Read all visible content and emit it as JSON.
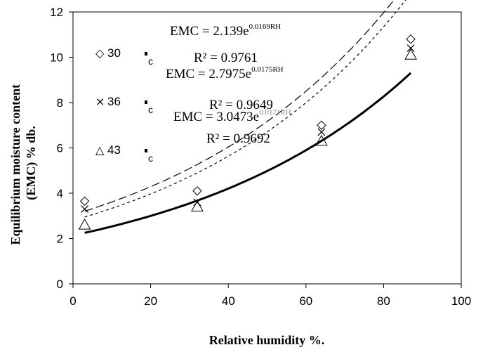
{
  "chart_data": {
    "type": "scatter",
    "xlabel": "Relative humidity %.",
    "ylabel": "Equilibrium moisture content (EMC) % db.",
    "xlim": [
      0,
      100
    ],
    "ylim": [
      0,
      12
    ],
    "xticks": [
      "0",
      "20",
      "40",
      "60",
      "80",
      "100"
    ],
    "yticks": [
      "0",
      "2",
      "4",
      "6",
      "8",
      "10",
      "12"
    ],
    "series": [
      {
        "name": "30",
        "marker": "diamond",
        "points": [
          [
            3,
            3.65
          ],
          [
            32,
            4.1
          ],
          [
            64,
            7.0
          ],
          [
            87,
            10.8
          ]
        ],
        "fit_a": 2.7975,
        "fit_b": 0.0175,
        "line": "short-dash",
        "equation": "EMC = 2.7975e",
        "exponent": "0.0175RH",
        "r2": "R² = 0.9649"
      },
      {
        "name": "36",
        "marker": "cross",
        "points": [
          [
            3,
            3.3
          ],
          [
            32,
            3.6
          ],
          [
            64,
            6.7
          ],
          [
            87,
            10.4
          ]
        ],
        "fit_a": 3.0473,
        "fit_b": 0.0171,
        "line": "long-dash",
        "equation": "EMC = 3.0473e",
        "exponent": "0.0171RH",
        "r2": "R² = 0.9692"
      },
      {
        "name": "43",
        "marker": "triangle",
        "points": [
          [
            3,
            2.6
          ],
          [
            32,
            3.4
          ],
          [
            64,
            6.3
          ],
          [
            87,
            10.1
          ]
        ],
        "fit_a": 2.139,
        "fit_b": 0.0169,
        "line": "solid",
        "equation": "EMC = 2.139e",
        "exponent": "0.0169RH",
        "r2": "R² = 0.9761"
      }
    ],
    "legend_suffix": "c"
  }
}
